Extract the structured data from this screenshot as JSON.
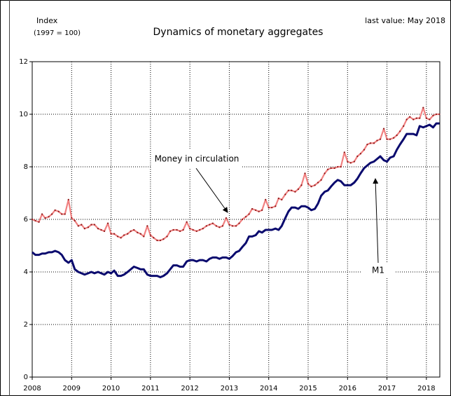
{
  "chart_data": {
    "type": "line",
    "title": "Dynamics of monetary aggregates",
    "subtitle": "last value: May 2018",
    "ylabel": "Index",
    "ylabel_note": "(1997 = 100)",
    "xlim": [
      2008,
      2018.34
    ],
    "xticks": [
      2008,
      2009,
      2010,
      2011,
      2012,
      2013,
      2014,
      2015,
      2016,
      2017,
      2018
    ],
    "ylim": [
      0,
      12
    ],
    "yticks": [
      0,
      2,
      4,
      6,
      8,
      10,
      12
    ],
    "grid": true,
    "x": [
      2008,
      2008.08,
      2008.17,
      2008.25,
      2008.33,
      2008.42,
      2008.5,
      2008.58,
      2008.67,
      2008.75,
      2008.83,
      2008.92,
      2009,
      2009.08,
      2009.17,
      2009.25,
      2009.33,
      2009.42,
      2009.5,
      2009.58,
      2009.67,
      2009.75,
      2009.83,
      2009.92,
      2010,
      2010.08,
      2010.17,
      2010.25,
      2010.33,
      2010.42,
      2010.5,
      2010.58,
      2010.67,
      2010.75,
      2010.83,
      2010.92,
      2011,
      2011.08,
      2011.17,
      2011.25,
      2011.33,
      2011.42,
      2011.5,
      2011.58,
      2011.67,
      2011.75,
      2011.83,
      2011.92,
      2012,
      2012.08,
      2012.17,
      2012.25,
      2012.33,
      2012.42,
      2012.5,
      2012.58,
      2012.67,
      2012.75,
      2012.83,
      2012.92,
      2013,
      2013.08,
      2013.17,
      2013.25,
      2013.33,
      2013.42,
      2013.5,
      2013.58,
      2013.67,
      2013.75,
      2013.83,
      2013.92,
      2014,
      2014.08,
      2014.17,
      2014.25,
      2014.33,
      2014.42,
      2014.5,
      2014.58,
      2014.67,
      2014.75,
      2014.83,
      2014.92,
      2015,
      2015.08,
      2015.17,
      2015.25,
      2015.33,
      2015.42,
      2015.5,
      2015.58,
      2015.67,
      2015.75,
      2015.83,
      2015.92,
      2016,
      2016.08,
      2016.17,
      2016.25,
      2016.33,
      2016.42,
      2016.5,
      2016.58,
      2016.67,
      2016.75,
      2016.83,
      2016.92,
      2017,
      2017.08,
      2017.17,
      2017.25,
      2017.33,
      2017.42,
      2017.5,
      2017.58,
      2017.67,
      2017.75,
      2017.83,
      2017.92,
      2018,
      2018.08,
      2018.17,
      2018.25,
      2018.33
    ],
    "series": [
      {
        "name": "Money in circulation",
        "color": "#f08080",
        "marker_color": "#8b1a1a",
        "values": [
          6.0,
          5.95,
          5.9,
          6.2,
          6.05,
          6.1,
          6.2,
          6.35,
          6.3,
          6.2,
          6.2,
          6.75,
          6.05,
          5.95,
          5.75,
          5.8,
          5.65,
          5.7,
          5.8,
          5.8,
          5.65,
          5.6,
          5.55,
          5.85,
          5.45,
          5.45,
          5.35,
          5.3,
          5.4,
          5.45,
          5.55,
          5.6,
          5.5,
          5.45,
          5.35,
          5.75,
          5.4,
          5.3,
          5.2,
          5.2,
          5.25,
          5.35,
          5.55,
          5.6,
          5.6,
          5.55,
          5.6,
          5.9,
          5.65,
          5.6,
          5.55,
          5.6,
          5.65,
          5.75,
          5.8,
          5.85,
          5.75,
          5.7,
          5.75,
          6.05,
          5.8,
          5.75,
          5.75,
          5.85,
          6.0,
          6.1,
          6.2,
          6.4,
          6.35,
          6.3,
          6.35,
          6.75,
          6.45,
          6.45,
          6.5,
          6.8,
          6.75,
          6.95,
          7.1,
          7.1,
          7.05,
          7.15,
          7.3,
          7.75,
          7.35,
          7.25,
          7.3,
          7.4,
          7.5,
          7.75,
          7.9,
          7.95,
          7.95,
          8.0,
          8.0,
          8.55,
          8.2,
          8.15,
          8.2,
          8.4,
          8.5,
          8.65,
          8.85,
          8.9,
          8.9,
          9.0,
          9.05,
          9.45,
          9.05,
          9.05,
          9.1,
          9.2,
          9.35,
          9.55,
          9.8,
          9.9,
          9.8,
          9.85,
          9.85,
          10.25,
          9.85,
          9.8,
          9.95,
          10.0,
          10.0
        ]
      },
      {
        "name": "M1",
        "color": "#0a0a6e",
        "values": [
          4.75,
          4.65,
          4.65,
          4.7,
          4.7,
          4.75,
          4.75,
          4.8,
          4.75,
          4.65,
          4.45,
          4.35,
          4.45,
          4.1,
          4.0,
          3.95,
          3.9,
          3.95,
          4.0,
          3.95,
          4.0,
          3.95,
          3.9,
          4.0,
          3.95,
          4.05,
          3.85,
          3.85,
          3.9,
          4.0,
          4.1,
          4.2,
          4.15,
          4.1,
          4.1,
          3.9,
          3.85,
          3.85,
          3.85,
          3.8,
          3.85,
          3.95,
          4.1,
          4.25,
          4.25,
          4.2,
          4.2,
          4.4,
          4.45,
          4.45,
          4.4,
          4.45,
          4.45,
          4.4,
          4.5,
          4.55,
          4.55,
          4.5,
          4.55,
          4.55,
          4.5,
          4.6,
          4.75,
          4.8,
          4.95,
          5.1,
          5.35,
          5.35,
          5.4,
          5.55,
          5.5,
          5.6,
          5.6,
          5.6,
          5.65,
          5.6,
          5.75,
          6.05,
          6.3,
          6.45,
          6.45,
          6.4,
          6.5,
          6.5,
          6.45,
          6.35,
          6.4,
          6.6,
          6.9,
          7.05,
          7.1,
          7.25,
          7.4,
          7.5,
          7.45,
          7.3,
          7.3,
          7.3,
          7.4,
          7.55,
          7.75,
          7.95,
          8.05,
          8.15,
          8.2,
          8.3,
          8.4,
          8.25,
          8.2,
          8.35,
          8.4,
          8.65,
          8.85,
          9.05,
          9.25,
          9.25,
          9.25,
          9.2,
          9.55,
          9.5,
          9.55,
          9.6,
          9.5,
          9.65,
          9.65
        ]
      }
    ]
  }
}
